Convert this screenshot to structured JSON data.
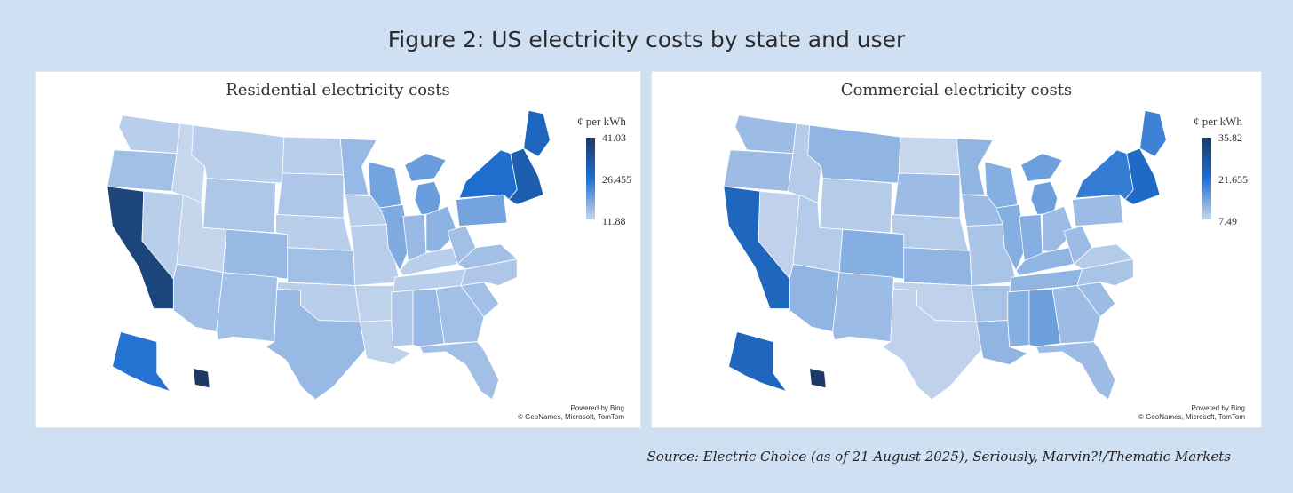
{
  "figure_title": "Figure 2: US electricity costs by state and user",
  "source": "Source: Electric Choice (as of 21 August 2025), Seriously, Marvin?!/Thematic Markets",
  "colors": {
    "low": "#c6d6ec",
    "mid": "#1f6fd0",
    "high": "#1b3a66",
    "background": "#cfe0f3"
  },
  "chart_data": [
    {
      "type": "choropleth",
      "title": "Residential electricity costs",
      "legend_title": "¢ per kWh",
      "legend_max": "41.03",
      "legend_mid": "26.455",
      "legend_min": "11.88",
      "range": [
        11.88,
        41.03
      ],
      "attribution_line1": "Powered by Bing",
      "attribution_line2": "© GeoNames, Microsoft, TomTom",
      "values": {
        "WA": 13,
        "OR": 15,
        "CA": 38,
        "NV": 13,
        "ID": 11.9,
        "MT": 13,
        "WY": 14,
        "UT": 12,
        "AZ": 15,
        "CO": 16,
        "NM": 15,
        "ND": 13,
        "SD": 14,
        "NE": 13,
        "KS": 15,
        "OK": 13,
        "TX": 16,
        "MN": 16,
        "IA": 13,
        "MO": 13,
        "AR": 12.5,
        "LA": 12.5,
        "WI": 19,
        "IL": 18,
        "MI": 20,
        "IN": 16,
        "OH": 17,
        "KY": 13,
        "TN": 13,
        "MS": 14,
        "AL": 16,
        "GA": 15,
        "FL": 15,
        "SC": 15,
        "NC": 14,
        "VA": 15,
        "WV": 15,
        "PA": 19,
        "NY": 27,
        "NE_STATES": 31,
        "ME": 29,
        "AK": 26,
        "HI": 41
      }
    },
    {
      "type": "choropleth",
      "title": "Commercial electricity costs",
      "legend_title": "¢ per kWh",
      "legend_max": "35.82",
      "legend_mid": "21.655",
      "legend_min": "7.49",
      "range": [
        7.49,
        35.82
      ],
      "attribution_line1": "Powered by Bing",
      "attribution_line2": "© GeoNames, Microsoft, TomTom",
      "values": {
        "WA": 11,
        "OR": 11,
        "CA": 24,
        "NV": 8,
        "ID": 9,
        "MT": 12,
        "WY": 9,
        "UT": 9,
        "AZ": 12,
        "CO": 13,
        "NM": 11,
        "ND": 7.5,
        "SD": 11,
        "NE": 9,
        "KS": 12,
        "OK": 8,
        "TX": 8,
        "MN": 12,
        "IA": 11,
        "MO": 10,
        "AR": 10,
        "LA": 12,
        "WI": 13,
        "IL": 13,
        "MI": 15,
        "IN": 13,
        "OH": 11,
        "KY": 12,
        "TN": 12,
        "MS": 13,
        "AL": 15,
        "GA": 11,
        "FL": 11,
        "SC": 11,
        "NC": 10,
        "VA": 9,
        "WV": 11,
        "PA": 11,
        "NY": 20,
        "NE_STATES": 23,
        "ME": 19,
        "AK": 24,
        "HI": 35.82
      }
    }
  ]
}
